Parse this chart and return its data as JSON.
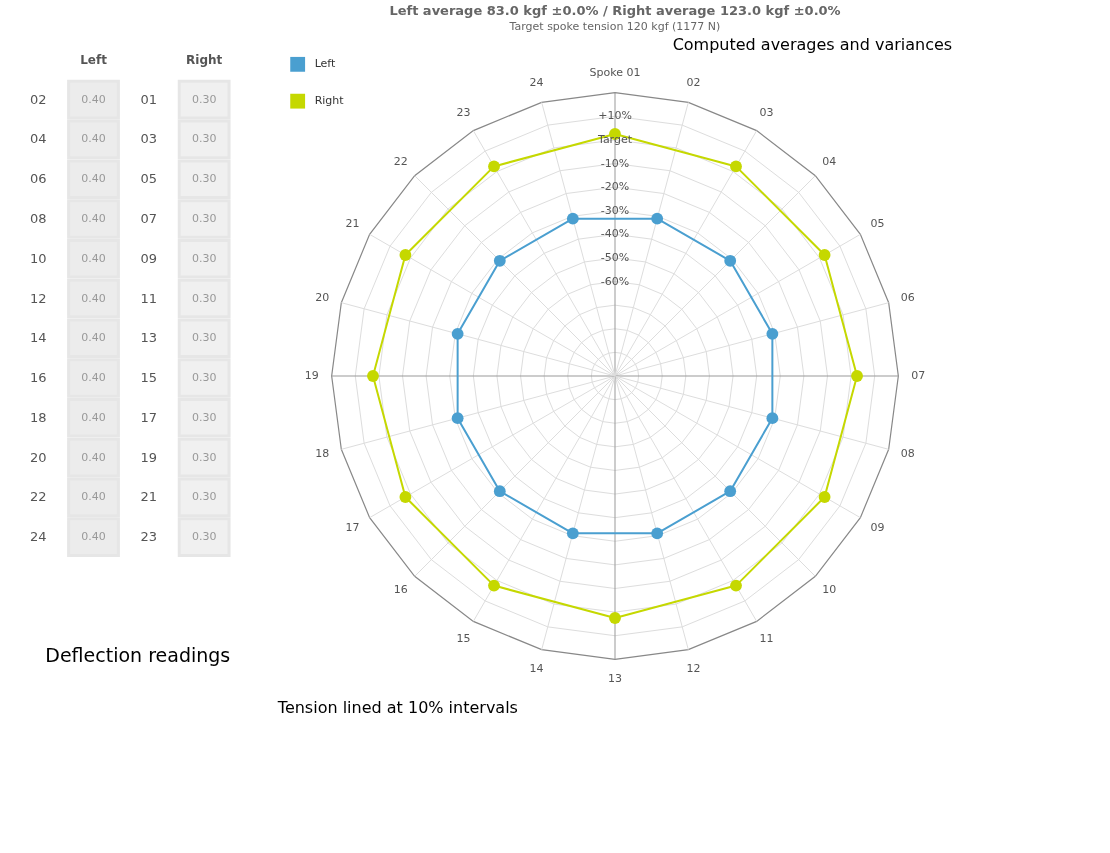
{
  "chart_data": [
    {
      "type": "heatmap",
      "categories": [
        "Left",
        "Right"
      ],
      "y_categories": [
        "02",
        "04",
        "06",
        "08",
        "10",
        "12",
        "14",
        "16",
        "18",
        "20",
        "22",
        "24"
      ],
      "y2_categories": [
        "01",
        "03",
        "05",
        "07",
        "09",
        "11",
        "13",
        "15",
        "17",
        "19",
        "21",
        "23"
      ],
      "cells": [
        [
          0.4,
          0.3
        ],
        [
          0.4,
          0.3
        ],
        [
          0.4,
          0.3
        ],
        [
          0.4,
          0.3
        ],
        [
          0.4,
          0.3
        ],
        [
          0.4,
          0.3
        ],
        [
          0.4,
          0.3
        ],
        [
          0.4,
          0.3
        ],
        [
          0.4,
          0.3
        ],
        [
          0.4,
          0.3
        ],
        [
          0.4,
          0.3
        ],
        [
          0.4,
          0.3
        ]
      ],
      "cell_labels": [
        [
          "0.40",
          "0.30"
        ],
        [
          "0.40",
          "0.30"
        ],
        [
          "0.40",
          "0.30"
        ],
        [
          "0.40",
          "0.30"
        ],
        [
          "0.40",
          "0.30"
        ],
        [
          "0.40",
          "0.30"
        ],
        [
          "0.40",
          "0.30"
        ],
        [
          "0.40",
          "0.30"
        ],
        [
          "0.40",
          "0.30"
        ],
        [
          "0.40",
          "0.30"
        ],
        [
          "0.40",
          "0.30"
        ],
        [
          "0.40",
          "0.30"
        ]
      ],
      "annotations": [
        "Deflection readings"
      ]
    },
    {
      "type": "radar",
      "title": "Left average 83.0 kgf ±0.0% / Right average 123.0 kgf ±0.0%",
      "subtitle": "Target spoke tension 120 kgf (1177 N)",
      "annotations": [
        "Computed averages and variances",
        "Tension lined at 10% intervals"
      ],
      "categories": [
        "Spoke 01",
        "02",
        "03",
        "04",
        "05",
        "06",
        "07",
        "08",
        "09",
        "10",
        "11",
        "12",
        "13",
        "14",
        "15",
        "16",
        "17",
        "18",
        "19",
        "20",
        "21",
        "22",
        "23",
        "24"
      ],
      "series": [
        {
          "name": "Left",
          "color": "#4a9fd0",
          "values": [
            null,
            -31,
            null,
            -31,
            null,
            -31,
            null,
            -31,
            null,
            -31,
            null,
            -31,
            null,
            -31,
            null,
            -31,
            null,
            -31,
            null,
            -31,
            null,
            -31,
            null,
            -31
          ]
        },
        {
          "name": "Right",
          "color": "#c5d800",
          "values": [
            2.5,
            null,
            2.5,
            null,
            2.5,
            null,
            2.5,
            null,
            2.5,
            null,
            2.5,
            null,
            2.5,
            null,
            2.5,
            null,
            2.5,
            null,
            2.5,
            null,
            2.5,
            null,
            2.5,
            null
          ]
        }
      ],
      "ylim": [
        -100,
        20
      ],
      "yticks": [
        {
          "value": -60,
          "label": "-60%"
        },
        {
          "value": -50,
          "label": "-50%"
        },
        {
          "value": -40,
          "label": "-40%"
        },
        {
          "value": -30,
          "label": "-30%"
        },
        {
          "value": -20,
          "label": "-20%"
        },
        {
          "value": -10,
          "label": "-10%"
        },
        {
          "value": 0,
          "label": "Target"
        },
        {
          "value": 10,
          "label": "+10%"
        }
      ],
      "legend": "top left",
      "marker": "circle",
      "grid": true
    }
  ]
}
